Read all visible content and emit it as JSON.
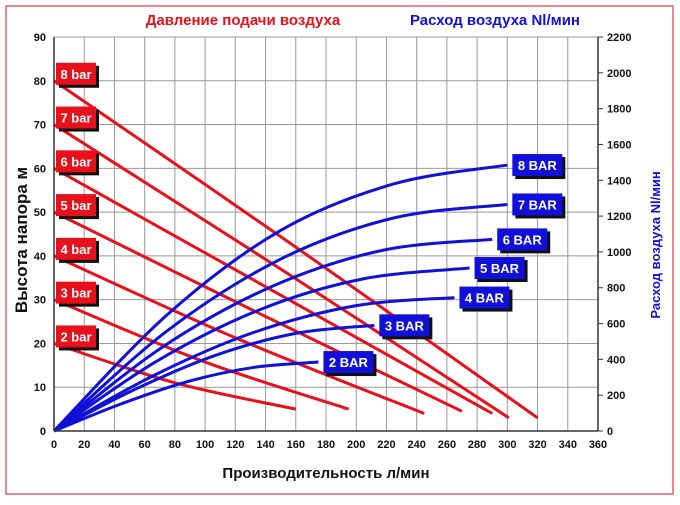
{
  "chart_data": {
    "type": "line",
    "title_left": "Давление подачи воздуха",
    "title_right": "Расход воздуха Nl/мин",
    "xlabel": "Производительность л/мин",
    "ylabel": "Высота напора м",
    "y2label": "Расход воздуха Nl/мин",
    "xlim": [
      0,
      360
    ],
    "ylim": [
      0,
      90
    ],
    "y2lim": [
      0,
      2200
    ],
    "xticks": [
      0,
      20,
      40,
      60,
      80,
      100,
      120,
      140,
      160,
      180,
      200,
      220,
      240,
      260,
      280,
      300,
      320,
      340,
      360
    ],
    "yticks": [
      0,
      10,
      20,
      30,
      40,
      50,
      60,
      70,
      80,
      90
    ],
    "y2ticks": [
      0,
      200,
      400,
      600,
      800,
      1000,
      1200,
      1400,
      1600,
      1800,
      2000,
      2200
    ],
    "grid": true,
    "colors": {
      "head": "#e8101a",
      "air": "#1010d8",
      "border": "#e06070"
    },
    "head_series": [
      {
        "name": "8 bar",
        "points": [
          [
            0,
            80
          ],
          [
            160,
            42
          ],
          [
            320,
            3
          ]
        ]
      },
      {
        "name": "7 bar",
        "points": [
          [
            0,
            70
          ],
          [
            150,
            37
          ],
          [
            301,
            3
          ]
        ]
      },
      {
        "name": "6 bar",
        "points": [
          [
            0,
            60
          ],
          [
            145,
            32
          ],
          [
            290,
            4
          ]
        ]
      },
      {
        "name": "5 bar",
        "points": [
          [
            0,
            50
          ],
          [
            135,
            27
          ],
          [
            270,
            4.5
          ]
        ]
      },
      {
        "name": "4 bar",
        "points": [
          [
            0,
            40
          ],
          [
            122,
            21
          ],
          [
            245,
            4
          ]
        ]
      },
      {
        "name": "3 bar",
        "points": [
          [
            0,
            30
          ],
          [
            98,
            16
          ],
          [
            195,
            5
          ]
        ]
      },
      {
        "name": "2 bar",
        "points": [
          [
            0,
            20
          ],
          [
            80,
            11
          ],
          [
            160,
            5
          ]
        ]
      }
    ],
    "air_series": [
      {
        "name": "8 BAR",
        "points": [
          [
            0,
            0
          ],
          [
            75,
            650
          ],
          [
            150,
            1120
          ],
          [
            225,
            1380
          ],
          [
            300,
            1485
          ]
        ]
      },
      {
        "name": "7 BAR",
        "points": [
          [
            0,
            0
          ],
          [
            75,
            560
          ],
          [
            150,
            960
          ],
          [
            225,
            1190
          ],
          [
            300,
            1265
          ]
        ]
      },
      {
        "name": "6 BAR",
        "points": [
          [
            0,
            0
          ],
          [
            72,
            470
          ],
          [
            145,
            810
          ],
          [
            218,
            1010
          ],
          [
            290,
            1070
          ]
        ]
      },
      {
        "name": "5 BAR",
        "points": [
          [
            0,
            0
          ],
          [
            68,
            390
          ],
          [
            137,
            680
          ],
          [
            205,
            850
          ],
          [
            275,
            910
          ]
        ]
      },
      {
        "name": "4 BAR",
        "points": [
          [
            0,
            0
          ],
          [
            66,
            310
          ],
          [
            132,
            550
          ],
          [
            200,
            700
          ],
          [
            265,
            745
          ]
        ]
      },
      {
        "name": "3 BAR",
        "points": [
          [
            0,
            0
          ],
          [
            53,
            230
          ],
          [
            106,
            420
          ],
          [
            160,
            545
          ],
          [
            212,
            590
          ]
        ]
      },
      {
        "name": "2 BAR",
        "points": [
          [
            0,
            0
          ],
          [
            44,
            150
          ],
          [
            88,
            275
          ],
          [
            132,
            355
          ],
          [
            175,
            385
          ]
        ]
      }
    ]
  }
}
